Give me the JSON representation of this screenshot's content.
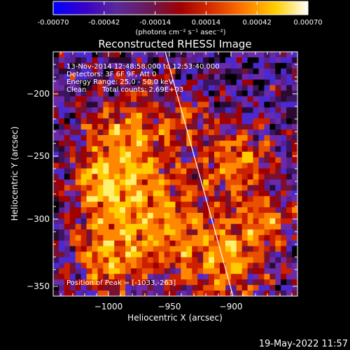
{
  "colorbar": {
    "tick_labels": [
      "-0.00070",
      "-0.00042",
      "-0.00014",
      "0.00014",
      "0.00042",
      "0.00070"
    ],
    "tick_values": [
      -0.0007,
      -0.00042,
      -0.00014,
      0.00014,
      0.00042,
      0.0007
    ],
    "range": [
      -0.0007,
      0.0007
    ],
    "units_label": "(photons cm⁻² s⁻¹ asec⁻²)",
    "colors": [
      "#0000ff",
      "#3a00c8",
      "#5a2a9a",
      "#6a1a5a",
      "#a00000",
      "#d83000",
      "#ff7a00",
      "#ffd000",
      "#ffffff"
    ]
  },
  "image": {
    "title": "Reconstructed RHESSI Image",
    "annotations": {
      "time": "13-Nov-2014 12:48:58.000 to 12:53:40.000",
      "detectors": "Detectors: 3F 6F 9F, Att 0",
      "energy": "Energy Range: 25.0 - 50.0 keV",
      "method": "Clean",
      "counts": "Total counts: 2.69E+03",
      "peak": "Position of Peak = [-1033,-263]"
    },
    "limb_line_color": "#ffffff"
  },
  "axes": {
    "xlabel": "Heliocentric X (arcsec)",
    "ylabel": "Heliocentric Y (arcsec)",
    "x_ticks": [
      -1000,
      -950,
      -900
    ],
    "x_tick_labels": [
      "−1000",
      "−950",
      "−900"
    ],
    "y_ticks": [
      -200,
      -250,
      -300,
      -350
    ],
    "y_tick_labels": [
      "−200",
      "−250",
      "−300",
      "−350"
    ],
    "xlim": [
      -1043,
      -953
    ],
    "ylim": [
      -360,
      -180
    ]
  },
  "footer": {
    "timestamp": "19-May-2022 11:57"
  }
}
